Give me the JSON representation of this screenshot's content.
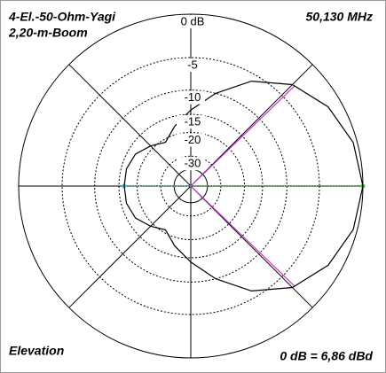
{
  "chart_data": {
    "type": "polar",
    "title": "4-El.-50-Ohm-Yagi",
    "subtitle": "2,20-m-Boom",
    "frequency": "50,130 MHz",
    "plane": "Elevation",
    "reference": "0 dB = 6,86 dBd",
    "scale": "arrl-log",
    "rlim": [
      -40,
      0
    ],
    "rticks": [
      {
        "value": 0,
        "label": "0 dB"
      },
      -5,
      -10,
      -15,
      -20,
      -30
    ],
    "spoke_angles": [
      0,
      45,
      90,
      135,
      180,
      225,
      270,
      315
    ],
    "theta": [
      0,
      15,
      30,
      45,
      60,
      75,
      90,
      105,
      120,
      135,
      150,
      165,
      180,
      195,
      210,
      225,
      240,
      255,
      270,
      285,
      300,
      315,
      330,
      345
    ],
    "series": [
      {
        "color": "#000000",
        "values": [
          0,
          -0.4,
          -1.4,
          -3.1,
          -6,
          -10,
          -14,
          -17.5,
          -21,
          -19,
          -17,
          -16.3,
          -16.3,
          -16.3,
          -17,
          -19,
          -21,
          -17.5,
          -14,
          -10,
          -6,
          -3.1,
          -1.4,
          -0.4
        ]
      }
    ],
    "beamwidth": {
      "angles": [
        44,
        -44
      ],
      "level": -3,
      "color": "#cc33cc"
    },
    "front_color": "#33cc33",
    "back_color": "#33cccc"
  }
}
